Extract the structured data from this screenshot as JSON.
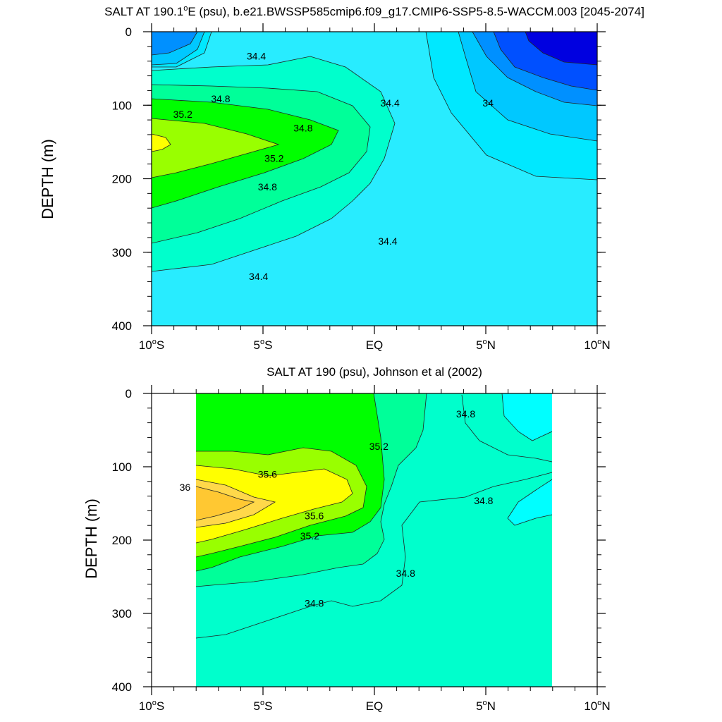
{
  "chart_data": [
    {
      "type": "contour",
      "title": "SALT AT 190.1°E (psu), b.e21.BWSSP585cmip6.f09_g17.CMIP6-SSP5-8.5-WACCM.003 [2045-2074]",
      "title_parts": {
        "pre": "SALT AT 190.1",
        "sup": "o",
        "post": "E (psu), b.e21.BWSSP585cmip6.f09_g17.CMIP6-SSP5-8.5-WACCM.003 [2045-2074]"
      },
      "xlabel": "",
      "ylabel": "DEPTH (m)",
      "xlim": [
        -10,
        10
      ],
      "ylim": [
        0,
        400
      ],
      "x_ticks": [
        {
          "value": -10,
          "num": "10",
          "sup": "o",
          "hemi": "S"
        },
        {
          "value": -5,
          "num": "5",
          "sup": "o",
          "hemi": "S"
        },
        {
          "value": 0,
          "num": "EQ",
          "sup": "",
          "hemi": ""
        },
        {
          "value": 5,
          "num": "5",
          "sup": "o",
          "hemi": "N"
        },
        {
          "value": 10,
          "num": "10",
          "sup": "o",
          "hemi": "N"
        }
      ],
      "y_ticks": [
        "0",
        "100",
        "200",
        "300",
        "400"
      ],
      "levels": [
        33.6,
        33.8,
        34.0,
        34.2,
        34.4,
        34.6,
        34.8,
        35.0,
        35.2,
        35.4
      ],
      "level_colors": {
        "lt33.6": "#0000e0",
        "33.6": "#0050ff",
        "33.8": "#0090ff",
        "34.0": "#00c8ff",
        "34.2": "#00e8ff",
        "34.4": "#28ecff",
        "34.6": "#00ffcc",
        "34.8": "#00ff99",
        "35.0": "#00ff00",
        "35.2": "#99ff00",
        "35.4": "#ffff00"
      },
      "max_value": 35.45,
      "contour_labels": [
        {
          "text": "34.4",
          "lon": -5.3,
          "depth": 33
        },
        {
          "text": "34.8",
          "lon": -6.9,
          "depth": 91
        },
        {
          "text": "35.2",
          "lon": -8.6,
          "depth": 112
        },
        {
          "text": "35.2",
          "lon": -4.5,
          "depth": 172
        },
        {
          "text": "34.8",
          "lon": -3.2,
          "depth": 131
        },
        {
          "text": "34.8",
          "lon": -4.8,
          "depth": 211
        },
        {
          "text": "34.4",
          "lon": 0.7,
          "depth": 97
        },
        {
          "text": "34",
          "lon": 5.1,
          "depth": 97
        },
        {
          "text": "34.4",
          "lon": 0.6,
          "depth": 285
        },
        {
          "text": "34.4",
          "lon": -5.2,
          "depth": 333
        }
      ]
    },
    {
      "type": "contour",
      "title": "SALT AT 190 (psu), Johnson et al (2002)",
      "xlabel": "",
      "ylabel": "DEPTH (m)",
      "xlim": [
        -10,
        10
      ],
      "ylim": [
        0,
        400
      ],
      "data_xrange": [
        -8,
        8
      ],
      "x_ticks": [
        {
          "value": -10,
          "num": "10",
          "sup": "o",
          "hemi": "S"
        },
        {
          "value": -5,
          "num": "5",
          "sup": "o",
          "hemi": "S"
        },
        {
          "value": 0,
          "num": "EQ",
          "sup": "",
          "hemi": ""
        },
        {
          "value": 5,
          "num": "5",
          "sup": "o",
          "hemi": "N"
        },
        {
          "value": 10,
          "num": "10",
          "sup": "o",
          "hemi": "N"
        }
      ],
      "y_ticks": [
        "0",
        "100",
        "200",
        "300",
        "400"
      ],
      "levels": [
        34.6,
        34.8,
        35.0,
        35.2,
        35.4,
        35.6,
        35.8,
        36.0
      ],
      "level_colors": {
        "lt34.6": "#00ffff",
        "34.8": "#00ffcc",
        "35.0": "#00ff99",
        "35.2": "#00ff00",
        "35.4": "#99ff00",
        "35.6": "#ffff00",
        "36.0": "#ffc832"
      },
      "max_value": 36.1,
      "contour_labels": [
        {
          "text": "34.8",
          "lon": 4.1,
          "depth": 28
        },
        {
          "text": "35.2",
          "lon": 0.2,
          "depth": 72
        },
        {
          "text": "35.6",
          "lon": -4.8,
          "depth": 110
        },
        {
          "text": "36",
          "lon": -8.5,
          "depth": 128
        },
        {
          "text": "35.6",
          "lon": -2.7,
          "depth": 167
        },
        {
          "text": "35.2",
          "lon": -2.9,
          "depth": 194
        },
        {
          "text": "34.8",
          "lon": 4.9,
          "depth": 146
        },
        {
          "text": "34.8",
          "lon": 1.4,
          "depth": 245
        },
        {
          "text": "34.8",
          "lon": -2.7,
          "depth": 286
        }
      ]
    }
  ]
}
